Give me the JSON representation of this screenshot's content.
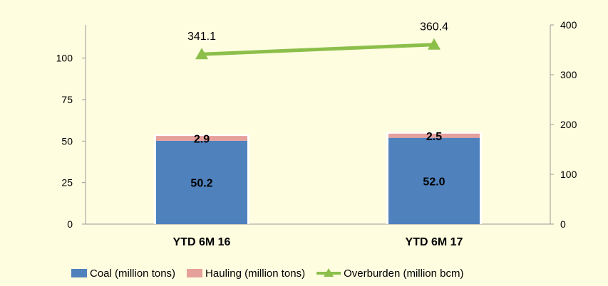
{
  "chart_data": {
    "type": "bar",
    "categories": [
      "YTD 6M 16",
      "YTD 6M 17"
    ],
    "series": [
      {
        "name": "Coal (million tons)",
        "kind": "stacked-bar",
        "axis": "left",
        "color": "#4f81bd",
        "values": [
          50.2,
          52.0
        ],
        "labels": [
          "50.2",
          "52.0"
        ]
      },
      {
        "name": "Hauling (million tons)",
        "kind": "stacked-bar",
        "axis": "left",
        "color": "#e6a09c",
        "values": [
          2.9,
          2.5
        ],
        "labels": [
          "2.9",
          "2.5"
        ]
      },
      {
        "name": "Overburden (million bcm)",
        "kind": "line",
        "axis": "right",
        "color": "#8cbf4a",
        "values": [
          341.1,
          360.4
        ],
        "labels": [
          "341.1",
          "360.4"
        ]
      }
    ],
    "y_left": {
      "range": [
        0,
        120
      ],
      "ticks": [
        0,
        25,
        50,
        75,
        100
      ],
      "tick_labels": [
        "0",
        "25",
        "50",
        "75",
        "100"
      ]
    },
    "y_right": {
      "range": [
        0,
        400
      ],
      "ticks": [
        0,
        100,
        200,
        300,
        400
      ],
      "tick_labels": [
        "0",
        "100",
        "200",
        "300",
        "400"
      ]
    },
    "legend": "bottom",
    "grid": false
  }
}
